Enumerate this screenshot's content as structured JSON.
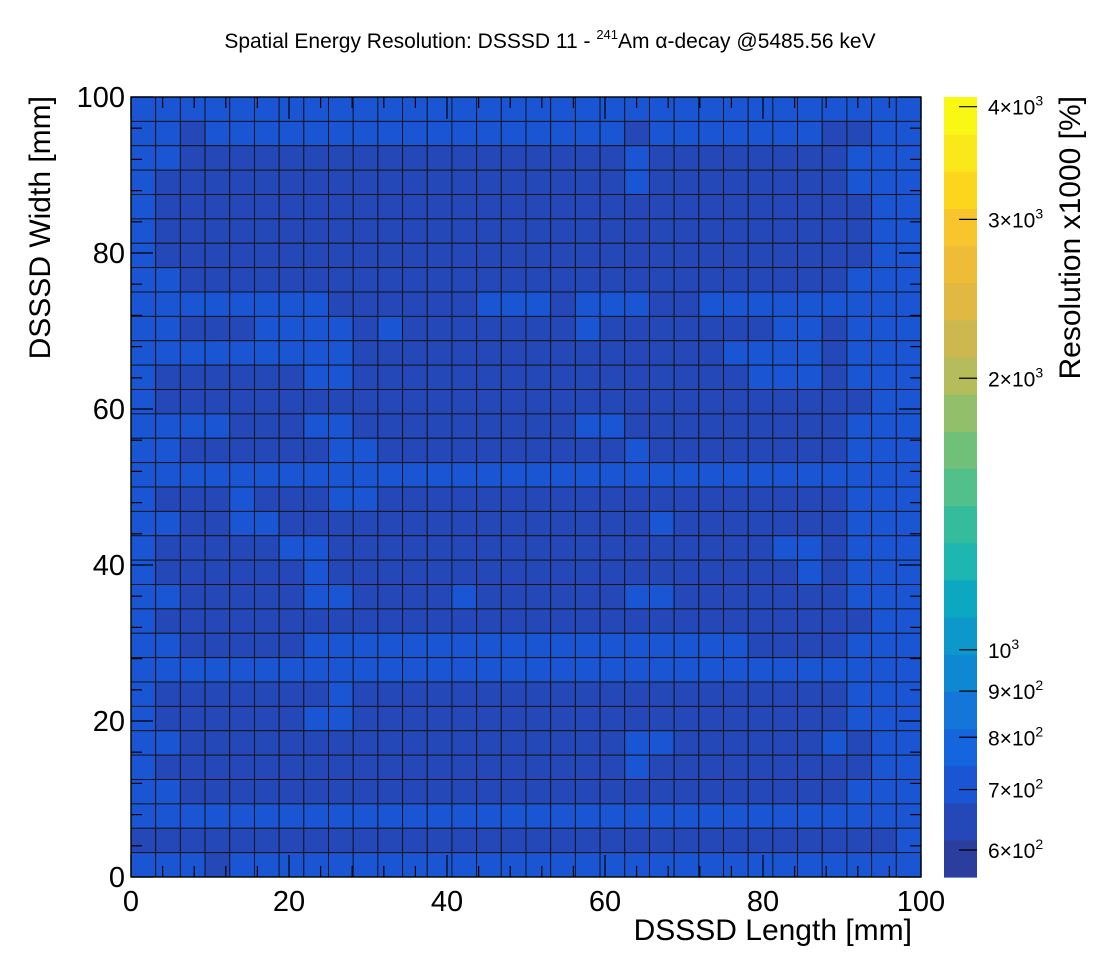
{
  "chart_data": {
    "type": "heatmap",
    "title_pre": "Spatial Energy Resolution: DSSSD 11 - ",
    "title_sup": "241",
    "title_post": "Am α-decay @5485.56 keV",
    "xlabel": "DSSSD Length [mm]",
    "ylabel": "DSSSD Width [mm]",
    "zlabel": "Resolution x1000 [%]",
    "xlim": [
      0,
      100
    ],
    "ylim": [
      0,
      100
    ],
    "xticks": [
      0,
      20,
      40,
      60,
      80,
      100
    ],
    "yticks": [
      0,
      20,
      40,
      60,
      80,
      100
    ],
    "zlim": [
      560,
      4100
    ],
    "zscale": "log",
    "zticks": [
      {
        "value": 600,
        "mant": "6",
        "exp": "2"
      },
      {
        "value": 700,
        "mant": "7",
        "exp": "2"
      },
      {
        "value": 800,
        "mant": "8",
        "exp": "2"
      },
      {
        "value": 900,
        "mant": "9",
        "exp": "2"
      },
      {
        "value": 1000,
        "mant": "",
        "exp": "3"
      },
      {
        "value": 2000,
        "mant": "2",
        "exp": "3"
      },
      {
        "value": 3000,
        "mant": "3",
        "exp": "3"
      },
      {
        "value": 4000,
        "mant": "4",
        "exp": "3"
      }
    ],
    "palette": [
      "#2b3e9e",
      "#2448b8",
      "#1a56d4",
      "#1465de",
      "#1476d8",
      "#0e88d2",
      "#0c98ca",
      "#0ca8c2",
      "#1eb6b0",
      "#34bc9c",
      "#52c08a",
      "#70c07a",
      "#92c06a",
      "#b4bc5c",
      "#cdb850",
      "#e0b842",
      "#eebc36",
      "#f8c62c",
      "#fcd61c",
      "#fae81a",
      "#f8f814"
    ],
    "grid_size": 32,
    "grid_rows_top_to_bottom": [
      "11111111111111111111111111111111",
      "11011111111111111111011111110011",
      "11000000000000000000100000000111",
      "10000000000000000000100000000111",
      "10000000000000000000000000000011",
      "10000000000000000000000000000011",
      "10000000000000000000000000000011",
      "11000000000000000000000000000111",
      "11111111000000111011100111111111",
      "11000111101000000010000000110111",
      "11111111100000000000000011110111",
      "10000001100000000000000001110111",
      "10000000000000000000000000000011",
      "11110001100000000011000000000111",
      "11000000110000000000100000000111",
      "11111111111111111111111111111111",
      "10001000110000000000000000000111",
      "11001100000000000000010000000111",
      "10000011000000000000000000110111",
      "10000001000000000000000000010111",
      "11000001100001000000110000000111",
      "10000000000000000000000000000011",
      "11000001111111111111111110000111",
      "11111111111111111111111111111111",
      "10000000100000000000000000000111",
      "10000001100000000000000000000111",
      "11000000000000000000110000001011",
      "10000000000000000000100000000011",
      "11000000000000000000000000000111",
      "11111111111111111111111111111111",
      "00000000000000000000000000000001",
      "11101111111111111111111111111111"
    ],
    "level_values": [
      640,
      720
    ],
    "grid": true
  }
}
